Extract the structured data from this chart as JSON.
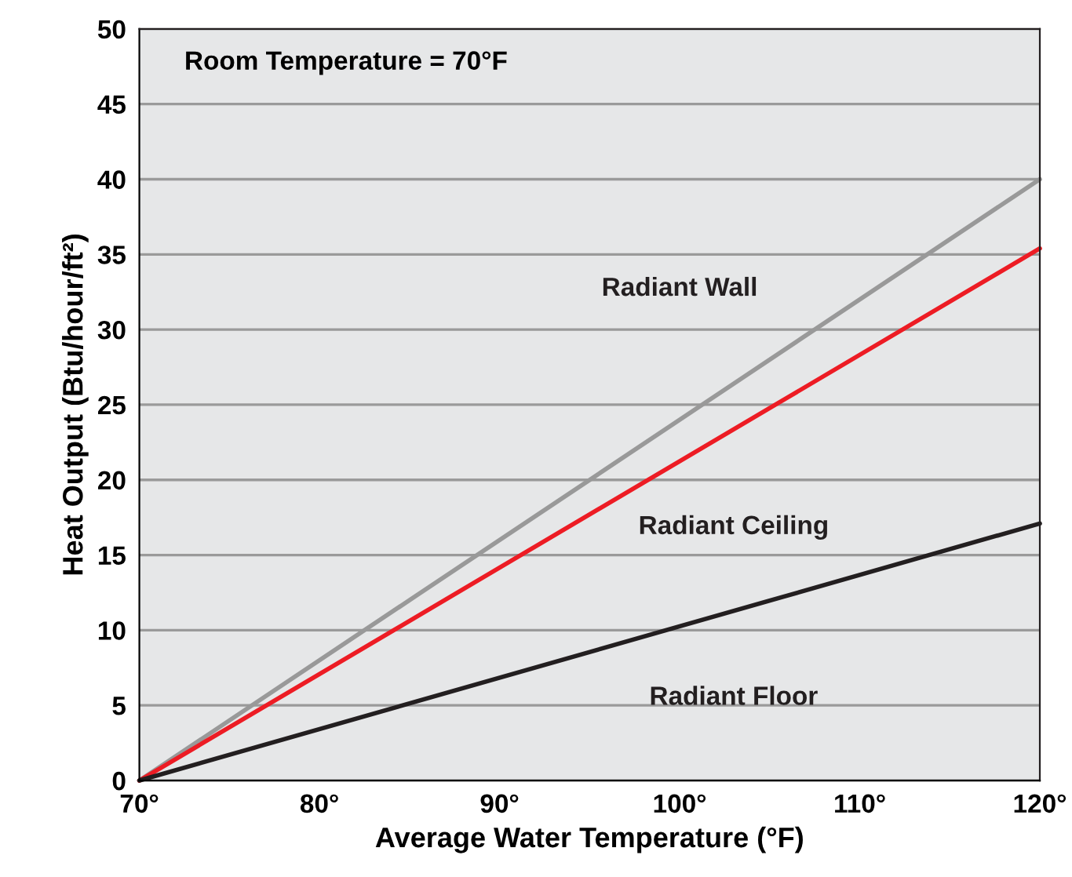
{
  "chart_data": {
    "type": "line",
    "xlabel": "Average Water Temperature (°F)",
    "ylabel": "Heat Output (Btu/hour/ft²)",
    "x": [
      70,
      120
    ],
    "series": [
      {
        "name": "Radiant Wall",
        "color": "#999999",
        "values": [
          0,
          40
        ]
      },
      {
        "name": "Radiant Ceiling",
        "color": "#ed1c24",
        "values": [
          0,
          35.4
        ]
      },
      {
        "name": "Radiant Floor",
        "color": "#231f20",
        "values": [
          0,
          17.1
        ]
      }
    ],
    "annotations": [
      "Room Temperature = 70°F"
    ],
    "xlim": [
      70,
      120
    ],
    "ylim": [
      0,
      50
    ],
    "xticks": [
      {
        "value": 70,
        "label": "70°"
      },
      {
        "value": 80,
        "label": "80°"
      },
      {
        "value": 90,
        "label": "90°"
      },
      {
        "value": 100,
        "label": "100°"
      },
      {
        "value": 110,
        "label": "110°"
      },
      {
        "value": 120,
        "label": "120°"
      }
    ],
    "yticks": [
      0,
      5,
      10,
      15,
      20,
      25,
      30,
      35,
      40,
      45,
      50
    ],
    "grid": "y",
    "legend": false,
    "marker": "none",
    "line_style": "solid"
  }
}
